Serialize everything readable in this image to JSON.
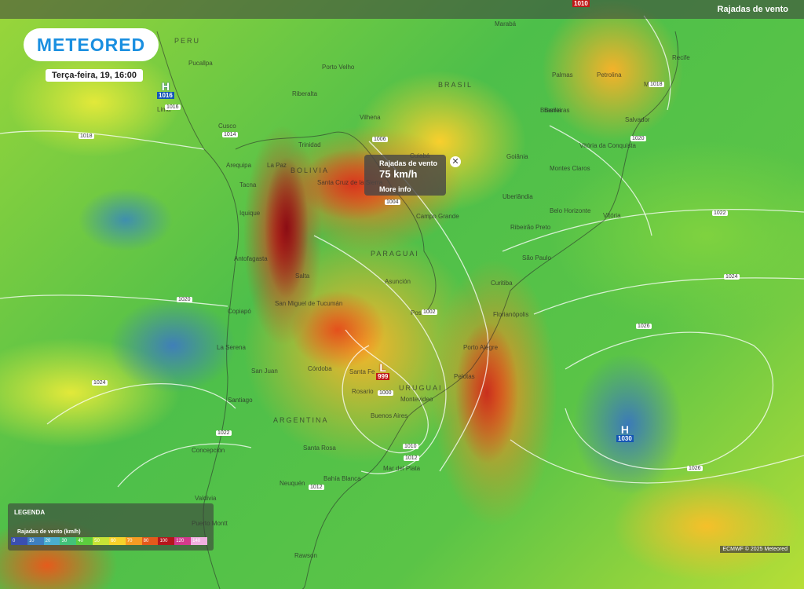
{
  "header": {
    "logo": "METEORED",
    "datetime": "Terça-feira, 19, 16:00",
    "layer": "Rajadas de vento"
  },
  "popup": {
    "title": "Rajadas de vento",
    "value": "75 km/h",
    "link": "More info"
  },
  "pressure_centers": [
    {
      "kind": "H",
      "value": "1016"
    },
    {
      "kind": "H",
      "value": "1030"
    },
    {
      "kind": "L",
      "value": "999"
    },
    {
      "kind": "",
      "value": "1010"
    }
  ],
  "countries": [
    "PERU",
    "BRASIL",
    "BOLIVIA",
    "PARAGUAI",
    "URUGUAI",
    "ARGENTINA"
  ],
  "places": [
    "Pucallpa",
    "Porto Velho",
    "Riberalta",
    "Lima",
    "Cusco",
    "Arequipa",
    "Trinidad",
    "La Paz",
    "Santa Cruz de la Sierra",
    "Tacna",
    "Iquique",
    "Antofagasta",
    "Vilhena",
    "Cuiabá",
    "Campo Grande",
    "Goiânia",
    "Brasília",
    "Palmas",
    "Barreiras",
    "Salvador",
    "Vitória da Conquista",
    "Montes Claros",
    "Belo Horizonte",
    "Vitória",
    "Uberlândia",
    "Ribeirão Preto",
    "São Paulo",
    "Curitiba",
    "Florianópolis",
    "Porto Alegre",
    "Pelotas",
    "Asunción",
    "Posadas",
    "Salta",
    "San Miguel de Tucumán",
    "Córdoba",
    "Santa Fe",
    "Rosario",
    "Buenos Aires",
    "Montevideo",
    "Mar del Plata",
    "Bahía Blanca",
    "Santa Rosa",
    "Neuquén",
    "San Juan",
    "La Serena",
    "Copiapó",
    "Santiago",
    "Concepción",
    "Valdivia",
    "Puerto Montt",
    "Rawson",
    "Marabá",
    "Recife",
    "Maceió",
    "Petrolina"
  ],
  "isobar_labels": [
    "1016",
    "1018",
    "1014",
    "1006",
    "1004",
    "1002",
    "1000",
    "1010",
    "1012",
    "1012",
    "1018",
    "1020",
    "1022",
    "1024",
    "1026",
    "1026",
    "1020",
    "1024",
    "1022"
  ],
  "legend": {
    "title": "LEGENDA",
    "subtitle": "Rajadas de vento (km/h)",
    "scale": [
      "0",
      "10",
      "20",
      "30",
      "40",
      "50",
      "60",
      "70",
      "80",
      "100",
      "120",
      "140"
    ]
  },
  "credit": "ECMWF © 2025 Meteored"
}
